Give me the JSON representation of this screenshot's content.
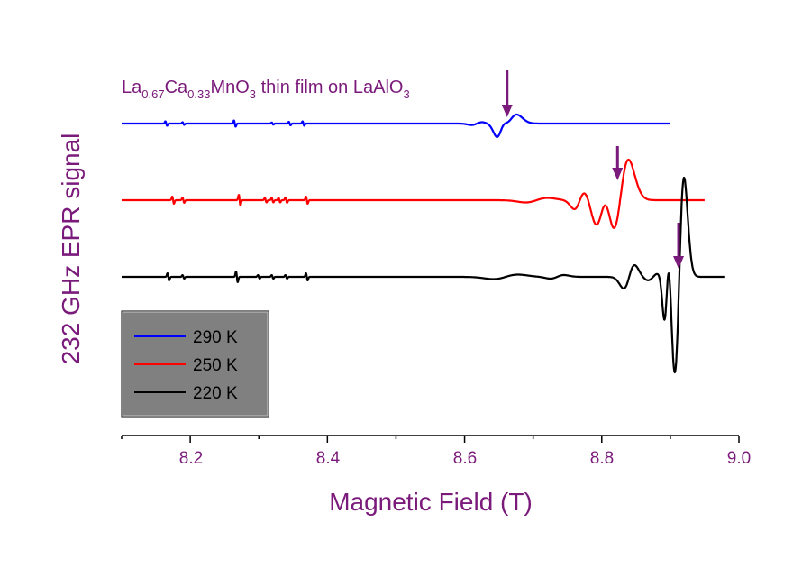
{
  "chart_data": {
    "type": "line",
    "xlabel": "Magnetic Field (T)",
    "ylabel": "232 GHz EPR signal",
    "xlim": [
      8.1,
      9.0
    ],
    "xticks": [
      "8.2",
      "8.4",
      "8.6",
      "8.8",
      "9.0"
    ],
    "annotation": {
      "base": "La",
      "sub1": "0.67",
      "part2": "Ca",
      "sub2": "0.33",
      "part3": "MnO",
      "sub3": "3",
      "part4": " thin film on LaAlO",
      "sub4": "3"
    },
    "legend_position": "bottom-left",
    "legend_fill": "#808080",
    "text_color": "#7a1a7a",
    "arrow_color": "#7a1a7a",
    "series": [
      {
        "name": "290 K",
        "color": "#0000ff",
        "x_range": [
          8.1,
          8.9
        ],
        "baseline": 0,
        "spikes": [
          [
            8.165,
            2.5
          ],
          [
            8.19,
            1.5
          ],
          [
            8.265,
            3.5
          ],
          [
            8.32,
            1.2
          ],
          [
            8.345,
            2
          ],
          [
            8.365,
            2.5
          ]
        ],
        "features": [
          [
            8.618,
            0.008,
            -1.6
          ],
          [
            8.652,
            0.006,
            -8
          ],
          [
            8.665,
            0.011,
            -10
          ]
        ],
        "arrow_x": 8.662
      },
      {
        "name": "250 K",
        "color": "#ff0000",
        "x_range": [
          8.1,
          8.95
        ],
        "baseline": 0,
        "spikes": [
          [
            8.175,
            4
          ],
          [
            8.19,
            3
          ],
          [
            8.272,
            6
          ],
          [
            8.31,
            2.5
          ],
          [
            8.32,
            2.5
          ],
          [
            8.33,
            2.5
          ],
          [
            8.34,
            3
          ],
          [
            8.37,
            4
          ]
        ],
        "features": [
          [
            8.705,
            0.016,
            -2.5
          ],
          [
            8.768,
            0.008,
            -10
          ],
          [
            8.8,
            0.009,
            -25
          ],
          [
            8.827,
            0.012,
            -45
          ]
        ],
        "arrow_x": 8.823
      },
      {
        "name": "220 K",
        "color": "#000000",
        "x_range": [
          8.1,
          8.98
        ],
        "baseline": 0,
        "spikes": [
          [
            8.168,
            4
          ],
          [
            8.19,
            2
          ],
          [
            8.268,
            6
          ],
          [
            8.3,
            2
          ],
          [
            8.32,
            2
          ],
          [
            8.34,
            2
          ],
          [
            8.37,
            4
          ]
        ],
        "features": [
          [
            8.66,
            0.018,
            -2.5
          ],
          [
            8.735,
            0.01,
            -2
          ],
          [
            8.84,
            0.008,
            -13
          ],
          [
            8.875,
            0.008,
            -4
          ],
          [
            8.895,
            0.004,
            -45
          ],
          [
            8.913,
            0.007,
            -110
          ]
        ],
        "arrow_x": 8.912
      }
    ]
  }
}
